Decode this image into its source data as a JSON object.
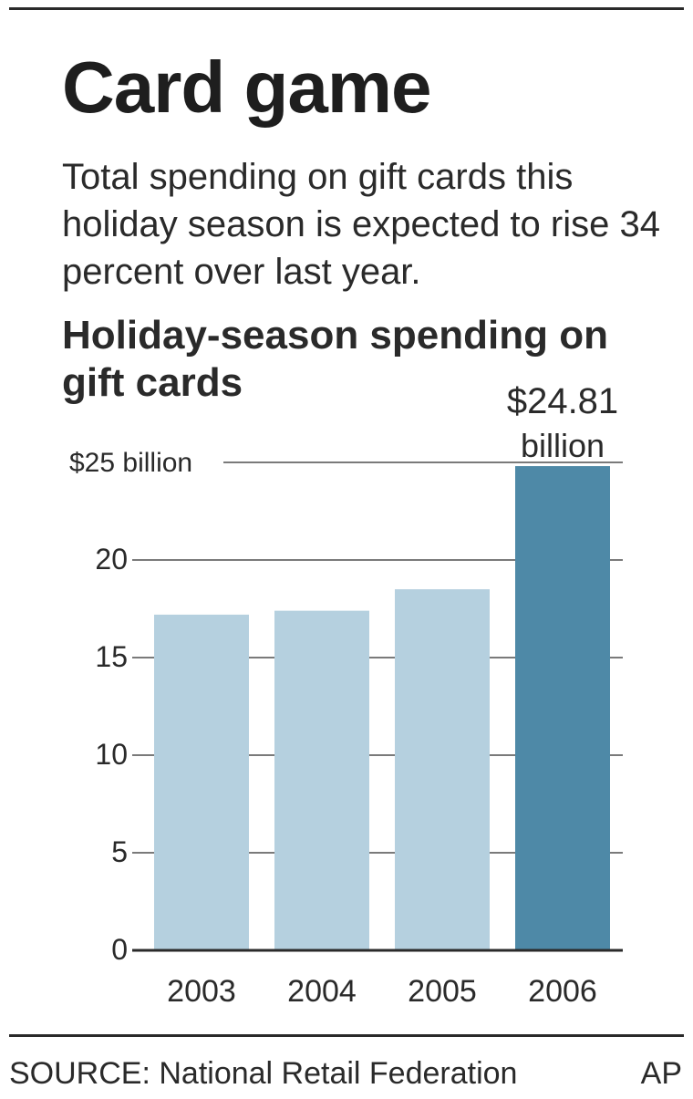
{
  "headline": "Card game",
  "deck": "Total spending on gift cards this holiday season is expected to rise 34 percent over last year.",
  "source": "SOURCE: National Retail Federation",
  "credit": "AP",
  "colors": {
    "bar": "#b5d0df",
    "highlight": "#4e89a7",
    "grid": "#7a7a7a",
    "text": "#2a2a2a"
  },
  "chart_data": {
    "type": "bar",
    "title": "Holiday-season spending on gift cards",
    "xlabel": "",
    "ylabel": "",
    "ylim": [
      0,
      25
    ],
    "yticks": [
      0,
      5,
      10,
      15,
      20,
      25
    ],
    "ytick_labels": [
      "0",
      "5",
      "10",
      "15",
      "20",
      "$25 billion"
    ],
    "categories": [
      "2003",
      "2004",
      "2005",
      "2006"
    ],
    "values": [
      17.2,
      17.4,
      18.5,
      24.81
    ],
    "highlight_index": 3,
    "data_labels": [
      {
        "index": 3,
        "lines": [
          "$24.81",
          "billion"
        ]
      }
    ],
    "grid": true,
    "legend": "none"
  }
}
